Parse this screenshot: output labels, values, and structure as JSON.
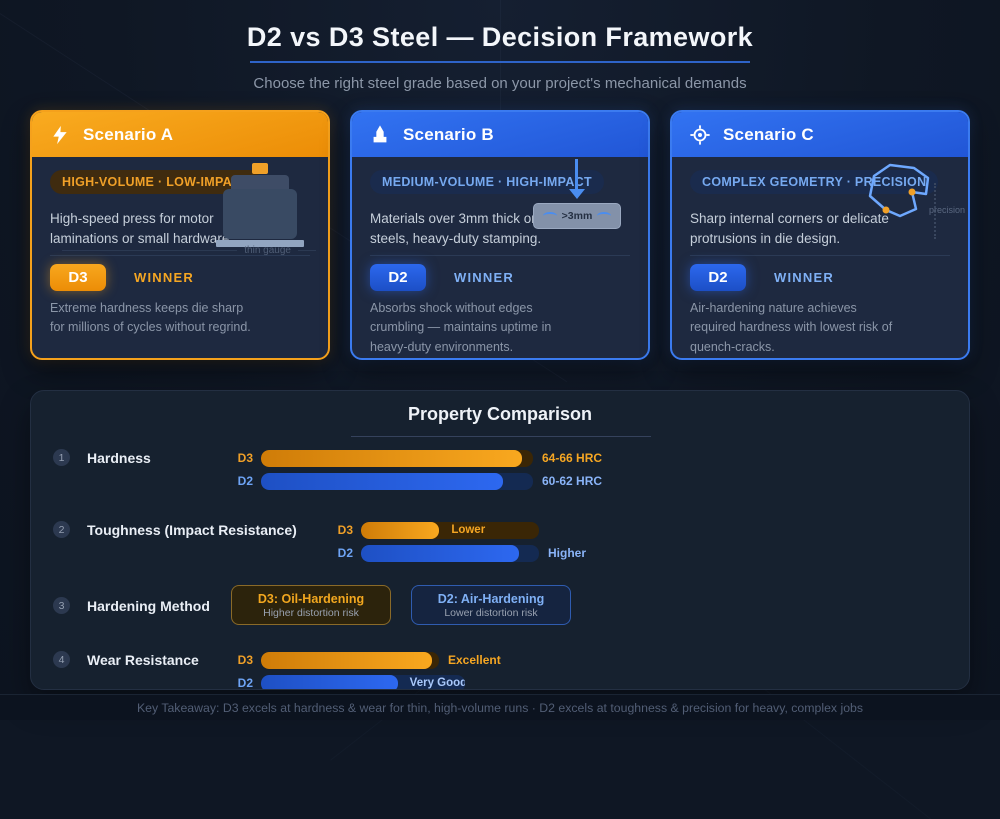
{
  "page": {
    "title": "D2 vs D3 Steel — Decision Framework",
    "subtitle": "Choose the right steel grade based on your project's mechanical demands",
    "footer": "Key Takeaway: D3 excels at hardness & wear for thin, high-volume runs · D2 excels at toughness & precision for heavy, complex jobs"
  },
  "colors": {
    "d3_orange": "#f5a11c",
    "d2_blue": "#2c68ee",
    "background": "#0f1724",
    "card_body": "#1e2940",
    "comparison_card": "#16212f"
  },
  "scenarios": [
    {
      "title": "Scenario A",
      "icon": "lightning-bolt-icon",
      "tag": "HIGH-VOLUME · LOW-IMPACT",
      "description": "High-speed press for motor laminations or small hardware.",
      "illustration_caption": "thin gauge",
      "winner": "D3",
      "winner_label": "WINNER",
      "winner_note": "Extreme hardness keeps die sharp for millions of cycles without regrind."
    },
    {
      "title": "Scenario B",
      "icon": "forging-press-icon",
      "tag": "MEDIUM-VOLUME · HIGH-IMPACT",
      "description": "Materials over 3mm thick or HSLA steels, heavy-duty stamping.",
      "illustration_caption": ">3mm",
      "winner": "D2",
      "winner_label": "WINNER",
      "winner_note": "Absorbs shock without edges crumbling — maintains uptime in heavy-duty environments."
    },
    {
      "title": "Scenario C",
      "icon": "crosshair-icon",
      "tag": "COMPLEX GEOMETRY · PRECISION",
      "description": "Sharp internal corners or delicate protrusions in die design.",
      "illustration_caption": "precision",
      "winner": "D2",
      "winner_label": "WINNER",
      "winner_note": "Air-hardening nature achieves required hardness with lowest risk of quench-cracks."
    }
  ],
  "comparison": {
    "title": "Property Comparison",
    "rows": [
      {
        "num": "1",
        "label": "Hardness",
        "bars": [
          {
            "grade": "D3",
            "fill_pct": 96,
            "value": "64-66 HRC"
          },
          {
            "grade": "D2",
            "fill_pct": 89,
            "value": "60-62 HRC"
          }
        ]
      },
      {
        "num": "2",
        "label": "Toughness (Impact Resistance)",
        "bars": [
          {
            "grade": "D3",
            "fill_pct": 44,
            "value": "Lower"
          },
          {
            "grade": "D2",
            "fill_pct": 89,
            "value": "Higher"
          }
        ]
      },
      {
        "num": "3",
        "label": "Hardening Method",
        "boxes": [
          {
            "title": "D3: Oil-Hardening",
            "subtitle": "Higher distortion risk"
          },
          {
            "title": "D2: Air-Hardening",
            "subtitle": "Lower distortion risk"
          }
        ]
      },
      {
        "num": "4",
        "label": "Wear Resistance",
        "bars": [
          {
            "grade": "D3",
            "fill_pct": 96,
            "value": "Excellent"
          },
          {
            "grade": "D2",
            "fill_pct": 67,
            "value": "Very Good"
          }
        ]
      }
    ]
  },
  "chart_data": {
    "type": "bar",
    "title": "Property Comparison",
    "categories": [
      "Hardness",
      "Toughness (Impact Resistance)",
      "Wear Resistance"
    ],
    "series": [
      {
        "name": "D3",
        "values": [
          96,
          44,
          96
        ],
        "labels": [
          "64-66 HRC",
          "Lower",
          "Excellent"
        ],
        "color": "#f5a11c"
      },
      {
        "name": "D2",
        "values": [
          89,
          89,
          67
        ],
        "labels": [
          "60-62 HRC",
          "Higher",
          "Very Good"
        ],
        "color": "#2c68ee"
      }
    ],
    "notes": "Hardening Method row is categorical: D3 Oil-Hardening (higher distortion risk) vs D2 Air-Hardening (lower distortion risk); bar lengths are relative (0-100)."
  }
}
